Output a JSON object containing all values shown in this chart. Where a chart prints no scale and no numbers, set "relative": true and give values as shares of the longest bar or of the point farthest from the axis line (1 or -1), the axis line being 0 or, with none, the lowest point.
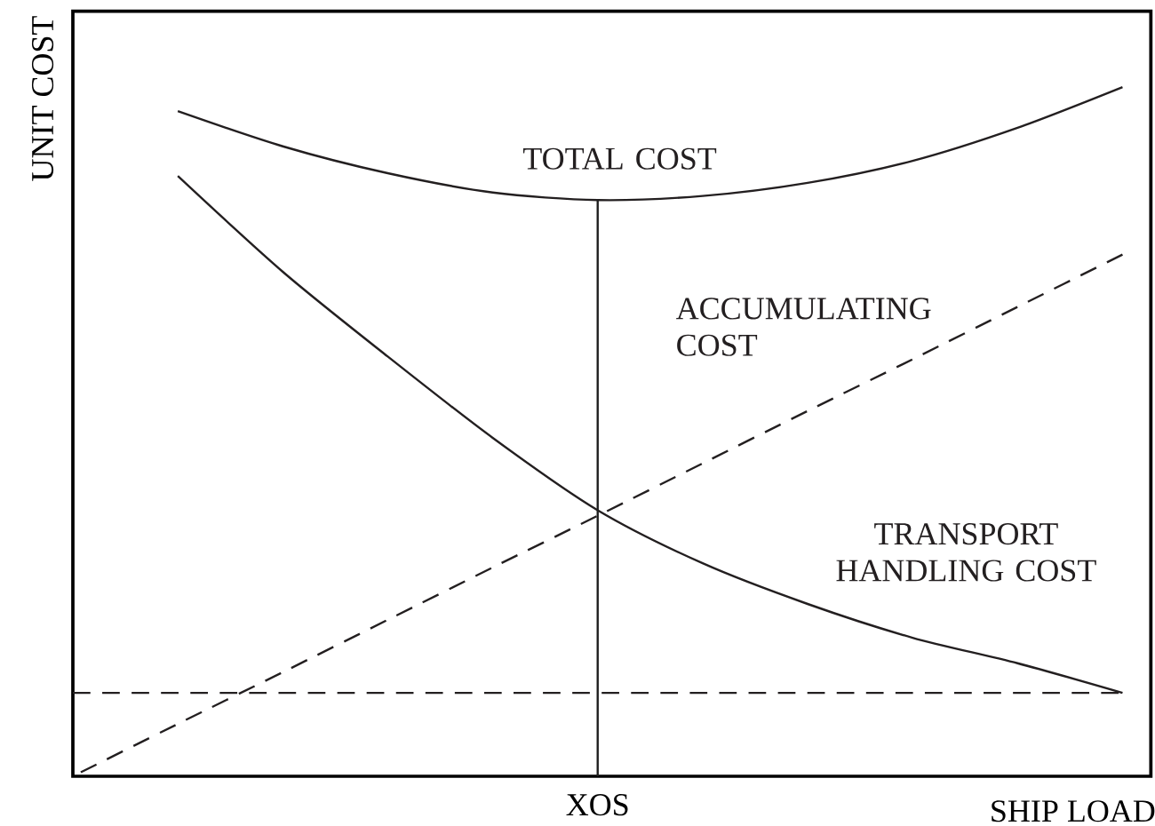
{
  "chart_data": {
    "type": "line",
    "relative": true,
    "xlabel": "SHIP LOAD",
    "ylabel": "UNIT COST",
    "categories": [
      null,
      null,
      null,
      null,
      null,
      null,
      null,
      null,
      null,
      null,
      null
    ],
    "annotations": [
      "XOS"
    ],
    "series": [
      {
        "name": "TOTAL COST",
        "color": "#231f20",
        "line_style": "solid",
        "values": [
          null,
          0.965,
          0.914,
          0.875,
          0.847,
          0.836,
          0.842,
          0.861,
          0.893,
          0.941,
          1.0
        ]
      },
      {
        "name": "ACCUMULATING COST",
        "color": "#231f20",
        "line_style": "dashed",
        "values": [
          0,
          0.076,
          0.151,
          0.227,
          0.303,
          0.378,
          0.454,
          0.53,
          0.605,
          0.681,
          0.757
        ]
      },
      {
        "name": "TRANSPORT HANDLING COST",
        "color": "#231f20",
        "line_style": "solid",
        "values": [
          null,
          0.871,
          0.732,
          0.609,
          0.491,
          0.386,
          0.309,
          0.25,
          0.201,
          0.164,
          0.121
        ]
      }
    ],
    "ref_lines": [
      {
        "axis": "y",
        "value": 0.121,
        "color": "#231f20",
        "line_style": "dashed"
      }
    ],
    "grid": false,
    "legend": false,
    "marker": "none"
  }
}
